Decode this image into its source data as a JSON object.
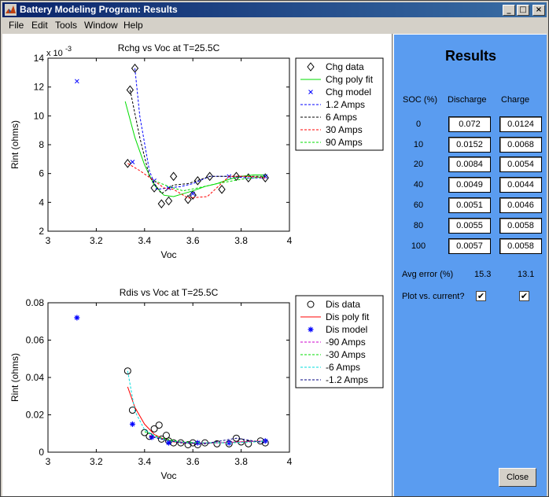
{
  "window": {
    "title": "Battery Modeling Program: Results",
    "minimize": "_",
    "maximize": "□",
    "close": "×"
  },
  "menu": [
    "File",
    "Edit",
    "Tools",
    "Window",
    "Help"
  ],
  "chart_data": [
    {
      "type": "line",
      "title": "Rchg vs Voc at T=25.5C",
      "xlabel": "Voc",
      "ylabel": "Rint (ohms)",
      "xlim": [
        3,
        4
      ],
      "ylim": [
        2,
        14
      ],
      "x_ticks": [
        "3",
        "3.2",
        "3.4",
        "3.6",
        "3.8",
        "4"
      ],
      "y_ticks": [
        "2",
        "4",
        "6",
        "8",
        "10",
        "12",
        "14"
      ],
      "y_multiplier": "x 10",
      "y_multiplier_exp": "-3",
      "legend_position": "outside-right",
      "series": [
        {
          "name": "Chg data",
          "style": "diamond",
          "color": "#000000",
          "x": [
            3.33,
            3.34,
            3.36,
            3.44,
            3.47,
            3.5,
            3.52,
            3.58,
            3.6,
            3.62,
            3.67,
            3.72,
            3.78,
            3.83,
            3.9
          ],
          "y": [
            6.7,
            11.8,
            13.3,
            5.0,
            3.9,
            4.1,
            5.8,
            4.2,
            4.5,
            5.5,
            5.8,
            4.9,
            5.8,
            5.7,
            5.7
          ]
        },
        {
          "name": "Chg poly fit",
          "style": "solid",
          "color": "#00dd00",
          "x": [
            3.32,
            3.36,
            3.4,
            3.44,
            3.48,
            3.52,
            3.56,
            3.6,
            3.65,
            3.7,
            3.75,
            3.8,
            3.85,
            3.9
          ],
          "y": [
            11.0,
            8.5,
            6.6,
            5.2,
            4.5,
            4.4,
            4.6,
            4.8,
            5.1,
            5.3,
            5.6,
            5.8,
            5.9,
            5.9
          ]
        },
        {
          "name": "Chg model",
          "style": "x",
          "color": "#0000ff",
          "x": [
            3.12,
            3.35,
            3.44,
            3.5,
            3.6,
            3.75,
            3.9
          ],
          "y": [
            12.4,
            6.8,
            5.5,
            5.0,
            4.6,
            5.8,
            5.8
          ]
        },
        {
          "name": "1.2 Amps",
          "style": "dashed",
          "color": "#0000ff",
          "x": [
            3.36,
            3.38,
            3.42,
            3.45,
            3.5,
            3.55,
            3.6,
            3.67,
            3.75,
            3.83,
            3.9
          ],
          "y": [
            13.3,
            10.0,
            6.2,
            4.9,
            5.0,
            5.1,
            5.3,
            5.8,
            5.8,
            5.7,
            5.7
          ]
        },
        {
          "name": "6 Amps",
          "style": "dashed",
          "color": "#000000",
          "x": [
            3.34,
            3.38,
            3.42,
            3.47,
            3.52,
            3.58,
            3.67,
            3.75,
            3.83,
            3.9
          ],
          "y": [
            11.8,
            8.5,
            5.8,
            4.6,
            5.2,
            5.3,
            5.8,
            5.8,
            5.8,
            5.8
          ]
        },
        {
          "name": "30 Amps",
          "style": "dashed",
          "color": "#ff0000",
          "x": [
            3.33,
            3.38,
            3.44,
            3.48,
            3.52,
            3.58,
            3.66,
            3.75,
            3.83,
            3.9
          ],
          "y": [
            6.7,
            6.2,
            5.5,
            5.0,
            4.9,
            4.3,
            4.4,
            5.8,
            5.8,
            5.7
          ]
        },
        {
          "name": "90 Amps",
          "style": "dashed",
          "color": "#00dd00",
          "x": [
            3.44,
            3.5,
            3.56,
            3.62,
            3.7,
            3.8,
            3.9
          ],
          "y": [
            5.5,
            5.1,
            4.8,
            5.0,
            5.3,
            5.6,
            5.8
          ]
        }
      ]
    },
    {
      "type": "line",
      "title": "Rdis vs Voc at T=25.5C",
      "xlabel": "Voc",
      "ylabel": "Rint (ohms)",
      "xlim": [
        3,
        4
      ],
      "ylim": [
        0,
        0.08
      ],
      "x_ticks": [
        "3",
        "3.2",
        "3.4",
        "3.6",
        "3.8",
        "4"
      ],
      "y_ticks": [
        "0",
        "0.02",
        "0.04",
        "0.06",
        "0.08"
      ],
      "legend_position": "outside-right",
      "series": [
        {
          "name": "Dis data",
          "style": "circle",
          "color": "#000000",
          "x": [
            3.33,
            3.35,
            3.4,
            3.42,
            3.44,
            3.46,
            3.47,
            3.49,
            3.5,
            3.52,
            3.55,
            3.58,
            3.6,
            3.62,
            3.65,
            3.7,
            3.75,
            3.78,
            3.8,
            3.83,
            3.88,
            3.9
          ],
          "y": [
            0.0435,
            0.0225,
            0.0105,
            0.0085,
            0.0125,
            0.0145,
            0.007,
            0.009,
            0.006,
            0.005,
            0.005,
            0.004,
            0.005,
            0.004,
            0.005,
            0.0045,
            0.0045,
            0.0075,
            0.0055,
            0.0045,
            0.006,
            0.005
          ]
        },
        {
          "name": "Dis poly fit",
          "style": "solid",
          "color": "#ff0000",
          "x": [
            3.33,
            3.36,
            3.4,
            3.44,
            3.48,
            3.52,
            3.56,
            3.6,
            3.65,
            3.7,
            3.75,
            3.8,
            3.85,
            3.9
          ],
          "y": [
            0.035,
            0.024,
            0.015,
            0.0095,
            0.007,
            0.0055,
            0.005,
            0.0048,
            0.0048,
            0.005,
            0.0052,
            0.0055,
            0.0058,
            0.006
          ]
        },
        {
          "name": "Dis model",
          "style": "star",
          "color": "#0000ff",
          "x": [
            3.12,
            3.35,
            3.43,
            3.5,
            3.62,
            3.75,
            3.9
          ],
          "y": [
            0.072,
            0.015,
            0.008,
            0.005,
            0.005,
            0.005,
            0.006
          ]
        },
        {
          "name": "-90 Amps",
          "style": "dashed",
          "color": "#cc00cc",
          "x": [
            3.42,
            3.5,
            3.6,
            3.7,
            3.8,
            3.9
          ],
          "y": [
            0.009,
            0.006,
            0.005,
            0.005,
            0.0055,
            0.006
          ]
        },
        {
          "name": "-30 Amps",
          "style": "dashed",
          "color": "#00dd00",
          "x": [
            3.4,
            3.47,
            3.55,
            3.65,
            3.75,
            3.85,
            3.9
          ],
          "y": [
            0.011,
            0.0075,
            0.0055,
            0.005,
            0.005,
            0.0055,
            0.006
          ]
        },
        {
          "name": "-6 Amps",
          "style": "dashed",
          "color": "#00dddd",
          "x": [
            3.33,
            3.36,
            3.4,
            3.45,
            3.5,
            3.58,
            3.66,
            3.75,
            3.85,
            3.9
          ],
          "y": [
            0.0435,
            0.022,
            0.012,
            0.008,
            0.006,
            0.005,
            0.005,
            0.005,
            0.0055,
            0.006
          ]
        },
        {
          "name": "-1.2 Amps",
          "style": "dashed",
          "color": "#000080",
          "x": [
            3.42,
            3.47,
            3.55,
            3.65,
            3.78,
            3.9
          ],
          "y": [
            0.0085,
            0.007,
            0.005,
            0.0045,
            0.0075,
            0.005
          ]
        }
      ]
    }
  ],
  "results": {
    "title": "Results",
    "headers": {
      "soc": "SOC (%)",
      "discharge": "Discharge",
      "charge": "Charge"
    },
    "rows": [
      {
        "soc": "0",
        "discharge": "0.072",
        "charge": "0.0124"
      },
      {
        "soc": "10",
        "discharge": "0.0152",
        "charge": "0.0068"
      },
      {
        "soc": "20",
        "discharge": "0.0084",
        "charge": "0.0054"
      },
      {
        "soc": "40",
        "discharge": "0.0049",
        "charge": "0.0044"
      },
      {
        "soc": "60",
        "discharge": "0.0051",
        "charge": "0.0046"
      },
      {
        "soc": "80",
        "discharge": "0.0055",
        "charge": "0.0058"
      },
      {
        "soc": "100",
        "discharge": "0.0057",
        "charge": "0.0058"
      }
    ],
    "avg_error_label": "Avg error (%)",
    "avg_error_discharge": "15.3",
    "avg_error_charge": "13.1",
    "plot_vs_current_label": "Plot vs. current?",
    "plot_vs_current_discharge": true,
    "plot_vs_current_charge": true,
    "check_mark": "✔",
    "close_label": "Close"
  }
}
